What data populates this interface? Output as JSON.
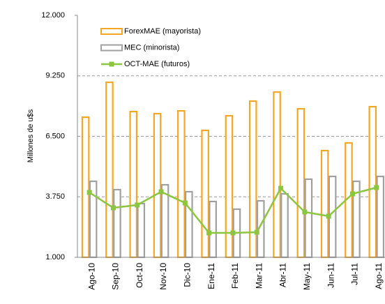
{
  "chart_data": {
    "type": "bar_line",
    "y_label": "Millones de u$s",
    "categories": [
      "Ago-10",
      "Sep-10",
      "Oct-10",
      "Nov-10",
      "Dic-10",
      "Ene-11",
      "Feb-11",
      "Mar-11",
      "Abr-11",
      "May-11",
      "Jun-11",
      "Jul-11",
      "Ago-11"
    ],
    "series": [
      {
        "name": "ForexMAE (mayorista)",
        "type": "bar",
        "color": "#f5a623",
        "values": [
          7370,
          8956,
          7624,
          7529,
          7656,
          6770,
          7434,
          8100,
          8512,
          7751,
          5850,
          6200,
          7846
        ]
      },
      {
        "name": "MEC (minorista)",
        "type": "bar",
        "color": "#a0a0a0",
        "values": [
          4455,
          4075,
          3440,
          4296,
          3980,
          3536,
          3187,
          3567,
          3884,
          4550,
          4677,
          4455,
          4677
        ]
      },
      {
        "name": "OCT-MAE (futuros)",
        "type": "line",
        "color": "#8cc63f",
        "values": [
          3948,
          3250,
          3377,
          3980,
          3472,
          2109,
          2109,
          2141,
          4138,
          3060,
          2870,
          3884,
          4170
        ]
      }
    ],
    "ylim": [
      1000,
      12000
    ],
    "yticks": [
      {
        "value": 1000,
        "label": "1.000"
      },
      {
        "value": 3750,
        "label": "3.750"
      },
      {
        "value": 6500,
        "label": "6.500"
      },
      {
        "value": 9250,
        "label": "9.250"
      },
      {
        "value": 12000,
        "label": "12.000"
      }
    ],
    "grid": true
  }
}
